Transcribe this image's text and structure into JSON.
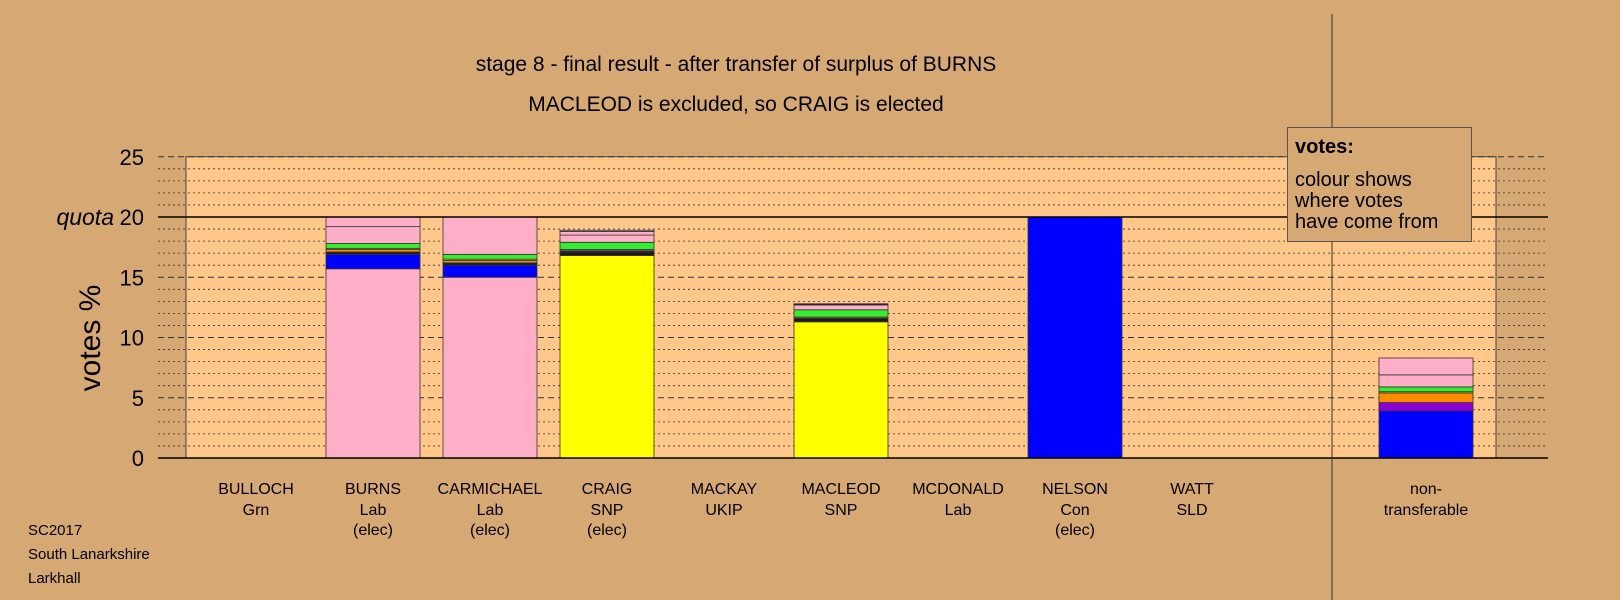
{
  "chart_data": {
    "type": "bar",
    "stacked": true,
    "title": "stage 8 - final result - after transfer of surplus of BURNS",
    "subtitle": "MACLEOD is excluded, so CRAIG is elected",
    "ylabel": "votes %",
    "quota_label": "quota",
    "quota": 20,
    "ylim": [
      0,
      25
    ],
    "yticks": [
      0,
      5,
      10,
      15,
      20,
      25
    ],
    "legend": {
      "title": "votes:",
      "body": "colour shows\nwhere votes\nhave come from",
      "placement": "top-right"
    },
    "candidates": [
      {
        "name": "BULLOCH",
        "party": "Grn",
        "status": "",
        "segments": []
      },
      {
        "name": "BURNS",
        "party": "Lab",
        "status": "(elec)",
        "segments": [
          {
            "color": "#ffb0c8",
            "value": 15.7
          },
          {
            "color": "#0000ff",
            "value": 1.2
          },
          {
            "color": "#1a1a1a",
            "value": 0.2
          },
          {
            "color": "#ff8c00",
            "value": 0.2
          },
          {
            "color": "#ffff00",
            "value": 0.1
          },
          {
            "color": "#33ee33",
            "value": 0.4
          },
          {
            "color": "#ffb0c8",
            "value": 1.4
          },
          {
            "color": "#ffb0c8",
            "value": 0.8
          }
        ]
      },
      {
        "name": "CARMICHAEL",
        "party": "Lab",
        "status": "(elec)",
        "segments": [
          {
            "color": "#ffb0c8",
            "value": 15.0
          },
          {
            "color": "#0000ff",
            "value": 1.0
          },
          {
            "color": "#1a1a1a",
            "value": 0.2
          },
          {
            "color": "#ff8c00",
            "value": 0.2
          },
          {
            "color": "#ffff00",
            "value": 0.1
          },
          {
            "color": "#33ee33",
            "value": 0.4
          },
          {
            "color": "#ffb0c8",
            "value": 3.1
          }
        ]
      },
      {
        "name": "CRAIG",
        "party": "SNP",
        "status": "(elec)",
        "segments": [
          {
            "color": "#ffff00",
            "value": 16.8
          },
          {
            "color": "#1a1a1a",
            "value": 0.3
          },
          {
            "color": "#0000ff",
            "value": 0.1
          },
          {
            "color": "#ff8c00",
            "value": 0.1
          },
          {
            "color": "#33ee33",
            "value": 0.6
          },
          {
            "color": "#ffb0c8",
            "value": 0.6
          },
          {
            "color": "#ffb0c8",
            "value": 0.3
          },
          {
            "color": "#ffb0c8",
            "value": 0.1
          }
        ]
      },
      {
        "name": "MACKAY",
        "party": "UKIP",
        "status": "",
        "segments": []
      },
      {
        "name": "MACLEOD",
        "party": "SNP",
        "status": "",
        "segments": [
          {
            "color": "#ffff00",
            "value": 11.3
          },
          {
            "color": "#1a1a1a",
            "value": 0.3
          },
          {
            "color": "#ff8c00",
            "value": 0.1
          },
          {
            "color": "#33ee33",
            "value": 0.6
          },
          {
            "color": "#ffb0c8",
            "value": 0.4
          },
          {
            "color": "#1a1a1a",
            "value": 0.1
          }
        ]
      },
      {
        "name": "MCDONALD",
        "party": "Lab",
        "status": "",
        "segments": []
      },
      {
        "name": "NELSON",
        "party": "Con",
        "status": "(elec)",
        "segments": [
          {
            "color": "#0000ff",
            "value": 20.0
          }
        ]
      },
      {
        "name": "WATT",
        "party": "SLD",
        "status": "",
        "segments": []
      }
    ],
    "nontransferable": {
      "label1": "non-",
      "label2": "transferable",
      "segments": [
        {
          "color": "#0000ff",
          "value": 3.9
        },
        {
          "color": "#8a00d4",
          "value": 0.7
        },
        {
          "color": "#ff8c00",
          "value": 0.8
        },
        {
          "color": "#ffff00",
          "value": 0.1
        },
        {
          "color": "#33ee33",
          "value": 0.4
        },
        {
          "color": "#ffb0c8",
          "value": 1.0
        },
        {
          "color": "#ffb0c8",
          "value": 1.4
        }
      ]
    }
  },
  "footer": {
    "line1": "SC2017",
    "line2": "South Lanarkshire",
    "line3": "Larkhall"
  },
  "colors": {
    "background": "#d6a873",
    "plot_area": "#ffc88a",
    "grid": "#333333"
  }
}
